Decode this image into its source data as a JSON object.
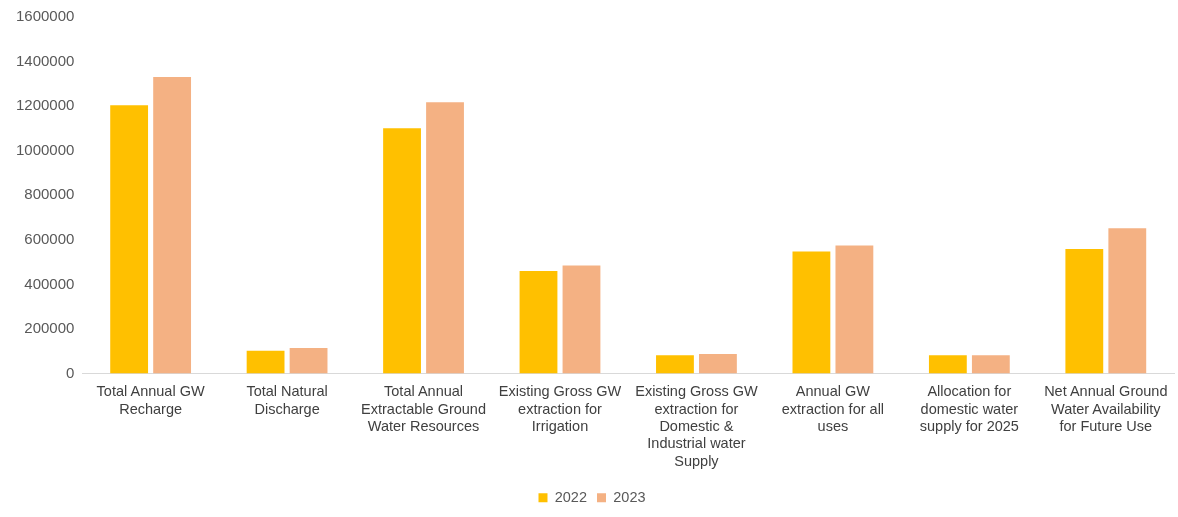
{
  "chart_data": {
    "type": "bar",
    "categories": [
      "Total Annual GW Recharge",
      "Total Natural Discharge",
      "Total Annual Extractable Ground Water Resources",
      "Existing Gross GW extraction for Irrigation",
      "Existing Gross GW extraction for Domestic & Industrial water Supply",
      "Annual GW extraction for all uses",
      "Allocation for domestic water supply for 2025",
      "Net Annual Ground Water Availability for Future Use"
    ],
    "series": [
      {
        "name": "2022",
        "color": "#ffc000",
        "values": [
          1204000,
          102000,
          1101000,
          460000,
          82000,
          547000,
          82000,
          559000
        ]
      },
      {
        "name": "2023",
        "color": "#f4b183",
        "values": [
          1331000,
          114000,
          1217000,
          485000,
          87000,
          575000,
          82000,
          652000
        ]
      }
    ],
    "ylim": [
      0,
      1600000
    ],
    "yticks": [
      0,
      200000,
      400000,
      600000,
      800000,
      1000000,
      1200000,
      1400000,
      1600000
    ],
    "grid": false,
    "legend": "bottom"
  }
}
